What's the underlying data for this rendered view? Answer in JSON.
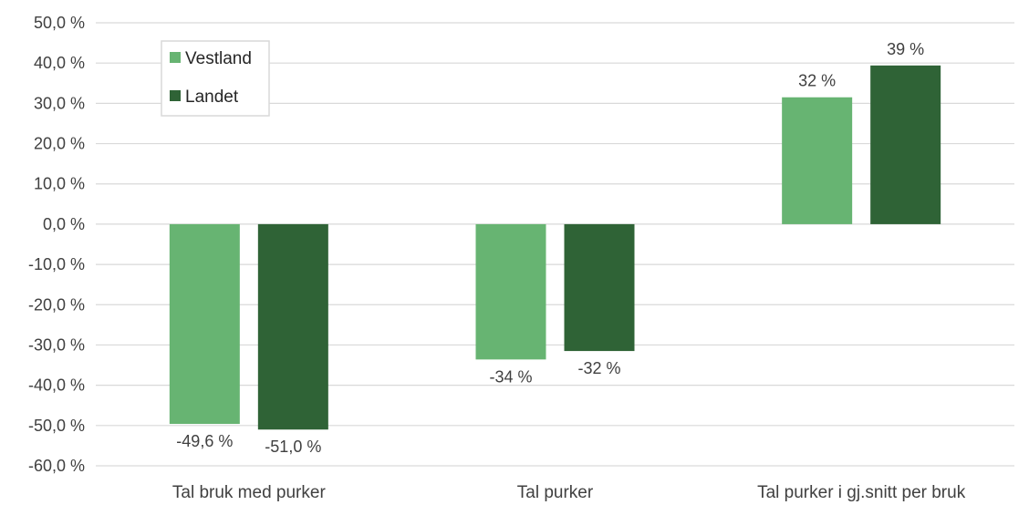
{
  "chart_data": {
    "type": "bar",
    "categories": [
      "Tal bruk med purker",
      "Tal purker",
      "Tal purker i gj.snitt per bruk"
    ],
    "series": [
      {
        "name": "Vestland",
        "color": "#67b472",
        "values": [
          -49.6,
          -33.6,
          31.5
        ],
        "labels": [
          "-49,6 %",
          "-34 %",
          "32 %"
        ]
      },
      {
        "name": "Landet",
        "color": "#2f6336",
        "values": [
          -51.0,
          -31.5,
          39.4
        ],
        "labels": [
          "-51,0 %",
          "-32 %",
          "39 %"
        ]
      }
    ],
    "ylim": [
      -60,
      50
    ],
    "yticks": [
      50,
      40,
      30,
      20,
      10,
      0,
      -10,
      -20,
      -30,
      -40,
      -50,
      -60
    ],
    "ytick_labels": [
      "50,0 %",
      "40,0 %",
      "30,0 %",
      "20,0 %",
      "10,0 %",
      "0,0 %",
      "-10,0 %",
      "-20,0 %",
      "-30,0 %",
      "-40,0 %",
      "-50,0 %",
      "-60,0 %"
    ],
    "grid": true,
    "gridline_color": "#d9d9d9",
    "legend_position": "top-left"
  }
}
